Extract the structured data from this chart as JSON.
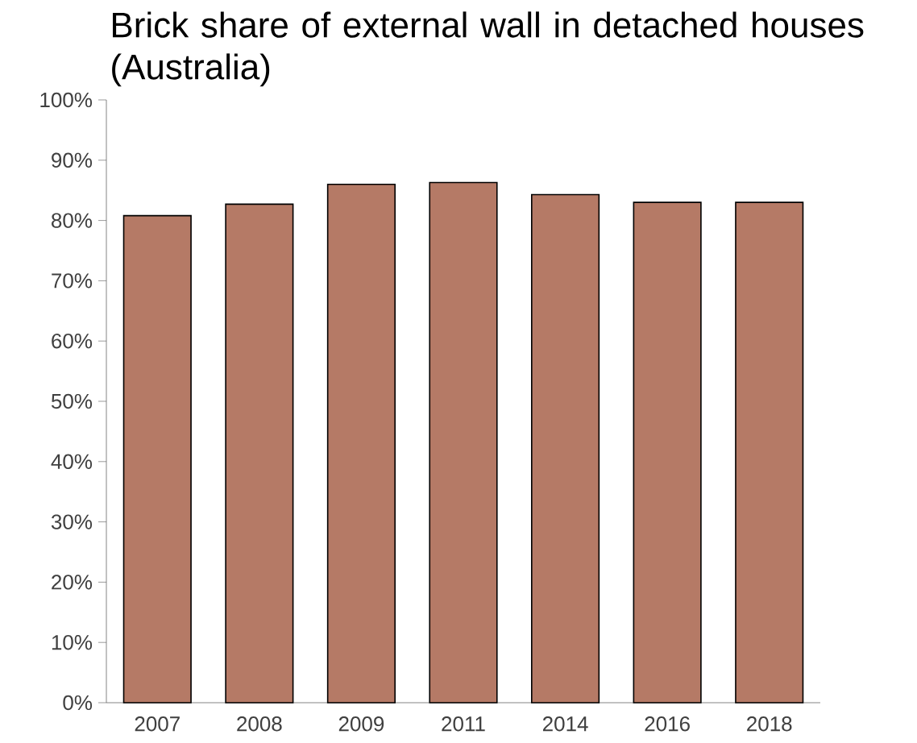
{
  "chart_data": {
    "type": "bar",
    "title": "Brick share of external wall in detached houses (Australia)",
    "categories": [
      "2007",
      "2008",
      "2009",
      "2011",
      "2014",
      "2016",
      "2018"
    ],
    "values": [
      80.8,
      82.7,
      86.0,
      86.3,
      84.3,
      83.0,
      83.0
    ],
    "color": "#b57a66",
    "ylim": [
      0,
      100
    ],
    "yticks": [
      {
        "value": 0,
        "label": "0%"
      },
      {
        "value": 10,
        "label": "10%"
      },
      {
        "value": 20,
        "label": "20%"
      },
      {
        "value": 30,
        "label": "30%"
      },
      {
        "value": 40,
        "label": "40%"
      },
      {
        "value": 50,
        "label": "50%"
      },
      {
        "value": 60,
        "label": "60%"
      },
      {
        "value": 70,
        "label": "70%"
      },
      {
        "value": 80,
        "label": "80%"
      },
      {
        "value": 90,
        "label": "90%"
      },
      {
        "value": 100,
        "label": "100%"
      }
    ],
    "grid": false
  }
}
